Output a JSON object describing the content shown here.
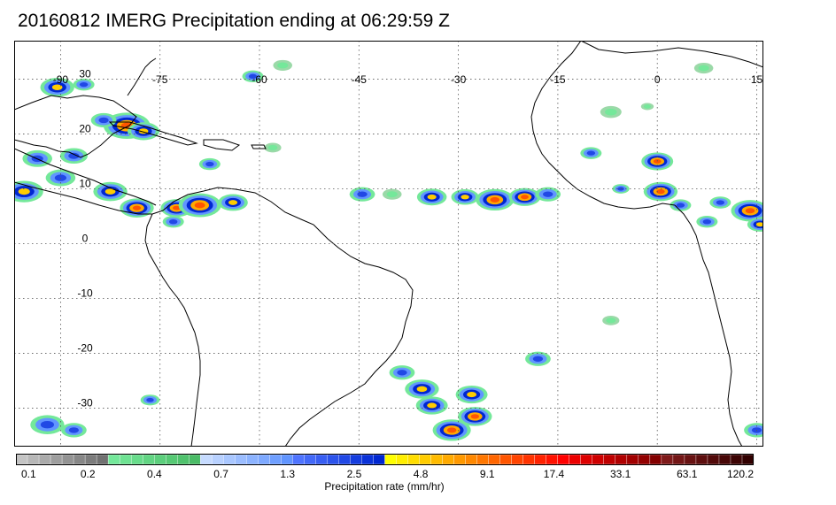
{
  "title": "20160812 IMERG Precipitation ending at 06:29:59 Z",
  "map": {
    "lon_range": [
      -97,
      16
    ],
    "lat_range": [
      -37,
      37
    ],
    "lon_ticks": [
      -90,
      -75,
      -60,
      -45,
      -30,
      -15,
      0,
      15
    ],
    "lat_ticks": [
      30,
      20,
      10,
      0,
      -10,
      -20,
      -30
    ],
    "lon_tick_labels": [
      "-90",
      "-75",
      "-60",
      "-45",
      "-30",
      "-15",
      "0",
      "15"
    ],
    "lat_tick_labels": [
      "30",
      "20",
      "10",
      "0",
      "-10",
      "-20",
      "-30"
    ],
    "grid": "dotted",
    "precip_cells": [
      {
        "lon": -90.5,
        "lat": 28.5,
        "r": 1.6,
        "level": 3
      },
      {
        "lon": -86.5,
        "lat": 29.0,
        "r": 1.0,
        "level": 2
      },
      {
        "lon": -80.0,
        "lat": 21.5,
        "r": 2.2,
        "level": 4
      },
      {
        "lon": -77.5,
        "lat": 20.5,
        "r": 1.5,
        "level": 3
      },
      {
        "lon": -83.5,
        "lat": 22.5,
        "r": 1.2,
        "level": 2
      },
      {
        "lon": -88.0,
        "lat": 16.0,
        "r": 1.3,
        "level": 2
      },
      {
        "lon": -93.5,
        "lat": 15.5,
        "r": 1.4,
        "level": 2
      },
      {
        "lon": -95.5,
        "lat": 9.5,
        "r": 1.8,
        "level": 3
      },
      {
        "lon": -90.0,
        "lat": 12.0,
        "r": 1.4,
        "level": 2
      },
      {
        "lon": -82.5,
        "lat": 9.5,
        "r": 1.6,
        "level": 3
      },
      {
        "lon": -78.5,
        "lat": 6.5,
        "r": 1.6,
        "level": 4
      },
      {
        "lon": -72.5,
        "lat": 6.5,
        "r": 1.5,
        "level": 4
      },
      {
        "lon": -69.0,
        "lat": 7.0,
        "r": 2.0,
        "level": 4
      },
      {
        "lon": -64.0,
        "lat": 7.5,
        "r": 1.4,
        "level": 3
      },
      {
        "lon": -73.0,
        "lat": 4.0,
        "r": 1.0,
        "level": 2
      },
      {
        "lon": -67.5,
        "lat": 14.5,
        "r": 1.0,
        "level": 2
      },
      {
        "lon": -58.0,
        "lat": 17.5,
        "r": 0.8,
        "level": 1
      },
      {
        "lon": -61.0,
        "lat": 30.5,
        "r": 1.0,
        "level": 2
      },
      {
        "lon": -56.5,
        "lat": 32.5,
        "r": 0.9,
        "level": 1
      },
      {
        "lon": -44.5,
        "lat": 9.0,
        "r": 1.2,
        "level": 2
      },
      {
        "lon": -40.0,
        "lat": 9.0,
        "r": 0.9,
        "level": 1
      },
      {
        "lon": -34.0,
        "lat": 8.5,
        "r": 1.4,
        "level": 3
      },
      {
        "lon": -29.0,
        "lat": 8.5,
        "r": 1.3,
        "level": 3
      },
      {
        "lon": -24.5,
        "lat": 8.0,
        "r": 1.8,
        "level": 4
      },
      {
        "lon": -20.0,
        "lat": 8.5,
        "r": 1.5,
        "level": 4
      },
      {
        "lon": -16.5,
        "lat": 9.0,
        "r": 1.2,
        "level": 2
      },
      {
        "lon": -10.0,
        "lat": 16.5,
        "r": 1.0,
        "level": 2
      },
      {
        "lon": -7.0,
        "lat": 24.0,
        "r": 1.0,
        "level": 1
      },
      {
        "lon": -5.5,
        "lat": 10.0,
        "r": 0.8,
        "level": 2
      },
      {
        "lon": 0.0,
        "lat": 15.0,
        "r": 1.5,
        "level": 4
      },
      {
        "lon": 0.5,
        "lat": 9.5,
        "r": 1.6,
        "level": 4
      },
      {
        "lon": 3.5,
        "lat": 7.0,
        "r": 1.0,
        "level": 2
      },
      {
        "lon": 7.5,
        "lat": 4.0,
        "r": 1.0,
        "level": 2
      },
      {
        "lon": 14.0,
        "lat": 6.0,
        "r": 1.8,
        "level": 4
      },
      {
        "lon": 15.5,
        "lat": 3.5,
        "r": 1.2,
        "level": 3
      },
      {
        "lon": 9.5,
        "lat": 7.5,
        "r": 1.0,
        "level": 2
      },
      {
        "lon": -38.5,
        "lat": -23.5,
        "r": 1.2,
        "level": 2
      },
      {
        "lon": -35.5,
        "lat": -26.5,
        "r": 1.6,
        "level": 3
      },
      {
        "lon": -34.0,
        "lat": -29.5,
        "r": 1.5,
        "level": 3
      },
      {
        "lon": -28.0,
        "lat": -27.5,
        "r": 1.5,
        "level": 3
      },
      {
        "lon": -27.5,
        "lat": -31.5,
        "r": 1.6,
        "level": 4
      },
      {
        "lon": -31.0,
        "lat": -34.0,
        "r": 1.8,
        "level": 4
      },
      {
        "lon": -18.0,
        "lat": -21.0,
        "r": 1.2,
        "level": 2
      },
      {
        "lon": -92.0,
        "lat": -33.0,
        "r": 1.6,
        "level": 2
      },
      {
        "lon": -88.0,
        "lat": -34.0,
        "r": 1.2,
        "level": 2
      },
      {
        "lon": -76.5,
        "lat": -28.5,
        "r": 0.9,
        "level": 2
      },
      {
        "lon": 15.0,
        "lat": -34.0,
        "r": 1.2,
        "level": 2
      },
      {
        "lon": -7.0,
        "lat": -14.0,
        "r": 0.8,
        "level": 1
      },
      {
        "lon": -1.5,
        "lat": 25.0,
        "r": 0.6,
        "level": 1
      },
      {
        "lon": 7.0,
        "lat": 32.0,
        "r": 0.9,
        "level": 1
      }
    ]
  },
  "colorbar": {
    "labels": [
      "0.1",
      "0.2",
      "0.4",
      "0.7",
      "1.3",
      "2.5",
      "4.8",
      "9.1",
      "17.4",
      "33.1",
      "63.1",
      "120.2"
    ],
    "xlabel": "Precipitation rate (mm/hr)",
    "colors": [
      "#c4c4c4",
      "#b7b7b7",
      "#aaaaaa",
      "#9e9e9e",
      "#939393",
      "#878787",
      "#7c7c7c",
      "#717171",
      "#74e89a",
      "#6ee292",
      "#68dc8b",
      "#62d583",
      "#5ccf7c",
      "#56c974",
      "#50c26d",
      "#4abb66",
      "#c6dbff",
      "#b8d1ff",
      "#a9c7ff",
      "#9bbdff",
      "#8cb3ff",
      "#7ea9ff",
      "#6f9fff",
      "#6195ff",
      "#4f74ff",
      "#4369f8",
      "#385ef2",
      "#2c53eb",
      "#2148e5",
      "#153dde",
      "#0a32d8",
      "#0027d1",
      "#ffff00",
      "#ffee00",
      "#ffdd00",
      "#ffcc00",
      "#ffbb00",
      "#ffaa00",
      "#ff9900",
      "#ff8800",
      "#ff7700",
      "#ff6600",
      "#ff5500",
      "#ff4400",
      "#ff3300",
      "#ff2200",
      "#ff1100",
      "#ff0000",
      "#ec0000",
      "#dd0000",
      "#ce0000",
      "#bf0000",
      "#b00000",
      "#a10000",
      "#920000",
      "#830000",
      "#7e1a1a",
      "#731616",
      "#681212",
      "#5d0e0e",
      "#520a0a",
      "#470707",
      "#3c0404",
      "#310000"
    ]
  }
}
